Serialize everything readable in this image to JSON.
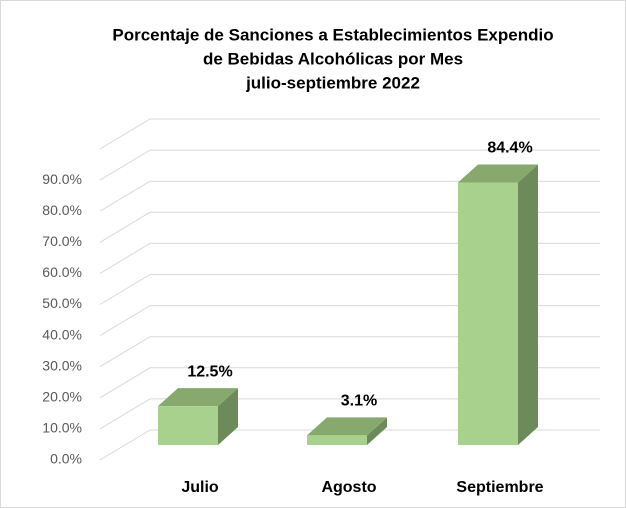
{
  "chart_data": {
    "type": "bar3d",
    "title": [
      "Porcentaje de Sanciones a Establecimientos Expendio",
      "de Bebidas Alcohólicas por Mes",
      "julio-septiembre 2022"
    ],
    "categories": [
      "Julio",
      "Agosto",
      "Septiembre"
    ],
    "values": [
      12.5,
      3.1,
      84.4
    ],
    "value_labels": [
      "12.5%",
      "3.1%",
      "84.4%"
    ],
    "color": "#a9d18e",
    "ylim": [
      0,
      100
    ],
    "yticks": [
      {
        "value": 0,
        "label": "0.0%"
      },
      {
        "value": 10,
        "label": "10.0%"
      },
      {
        "value": 20,
        "label": "20.0%"
      },
      {
        "value": 30,
        "label": "30.0%"
      },
      {
        "value": 40,
        "label": "40.0%"
      },
      {
        "value": 50,
        "label": "50.0%"
      },
      {
        "value": 60,
        "label": "60.0%"
      },
      {
        "value": 70,
        "label": "70.0%"
      },
      {
        "value": 80,
        "label": "80.0%"
      },
      {
        "value": 90,
        "label": "90.0%"
      }
    ],
    "grid": true
  }
}
